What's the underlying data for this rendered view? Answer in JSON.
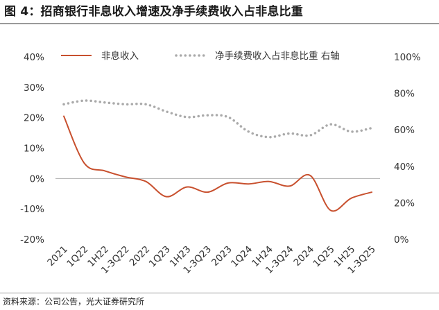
{
  "title": "图 4：招商银行非息收入增速及净手续费收入占非息比重",
  "source": "资料来源：公司公告，光大证券研究所",
  "colors": {
    "series1": "#c8502e",
    "series2": "#aaaaaa",
    "zero_line": "#b0b0b0",
    "text": "#333333"
  },
  "chart_data": {
    "type": "line",
    "categories": [
      "2021",
      "1Q22",
      "1H22",
      "1-3Q22",
      "2022",
      "1Q23",
      "1H23",
      "1-3Q23",
      "2023",
      "1Q24",
      "1H24",
      "1-3Q24",
      "2024",
      "1Q25",
      "1H25",
      "1-3Q25"
    ],
    "y_left": {
      "ylim": [
        -20,
        40
      ],
      "ticks": [
        "40%",
        "30%",
        "20%",
        "10%",
        "0%",
        "-10%",
        "-20%"
      ]
    },
    "y_right": {
      "ylim": [
        0,
        100
      ],
      "ticks": [
        "100%",
        "80%",
        "60%",
        "40%",
        "20%",
        "0%"
      ]
    },
    "series": [
      {
        "name": "非息收入",
        "axis": "left",
        "style": "solid",
        "values": [
          20.5,
          5.0,
          2.5,
          0.5,
          -1.0,
          -6.0,
          -2.8,
          -4.5,
          -1.5,
          -1.8,
          -1.0,
          -2.5,
          1.0,
          -10.5,
          -6.5,
          -4.5
        ]
      },
      {
        "name": "净手续费收入占非息比重 右轴",
        "axis": "right",
        "style": "dotted",
        "values": [
          74,
          76,
          75,
          74,
          74,
          70,
          67,
          68,
          67,
          59,
          56,
          58,
          57,
          63,
          59,
          61
        ]
      }
    ],
    "legend": "top",
    "grid": false
  }
}
